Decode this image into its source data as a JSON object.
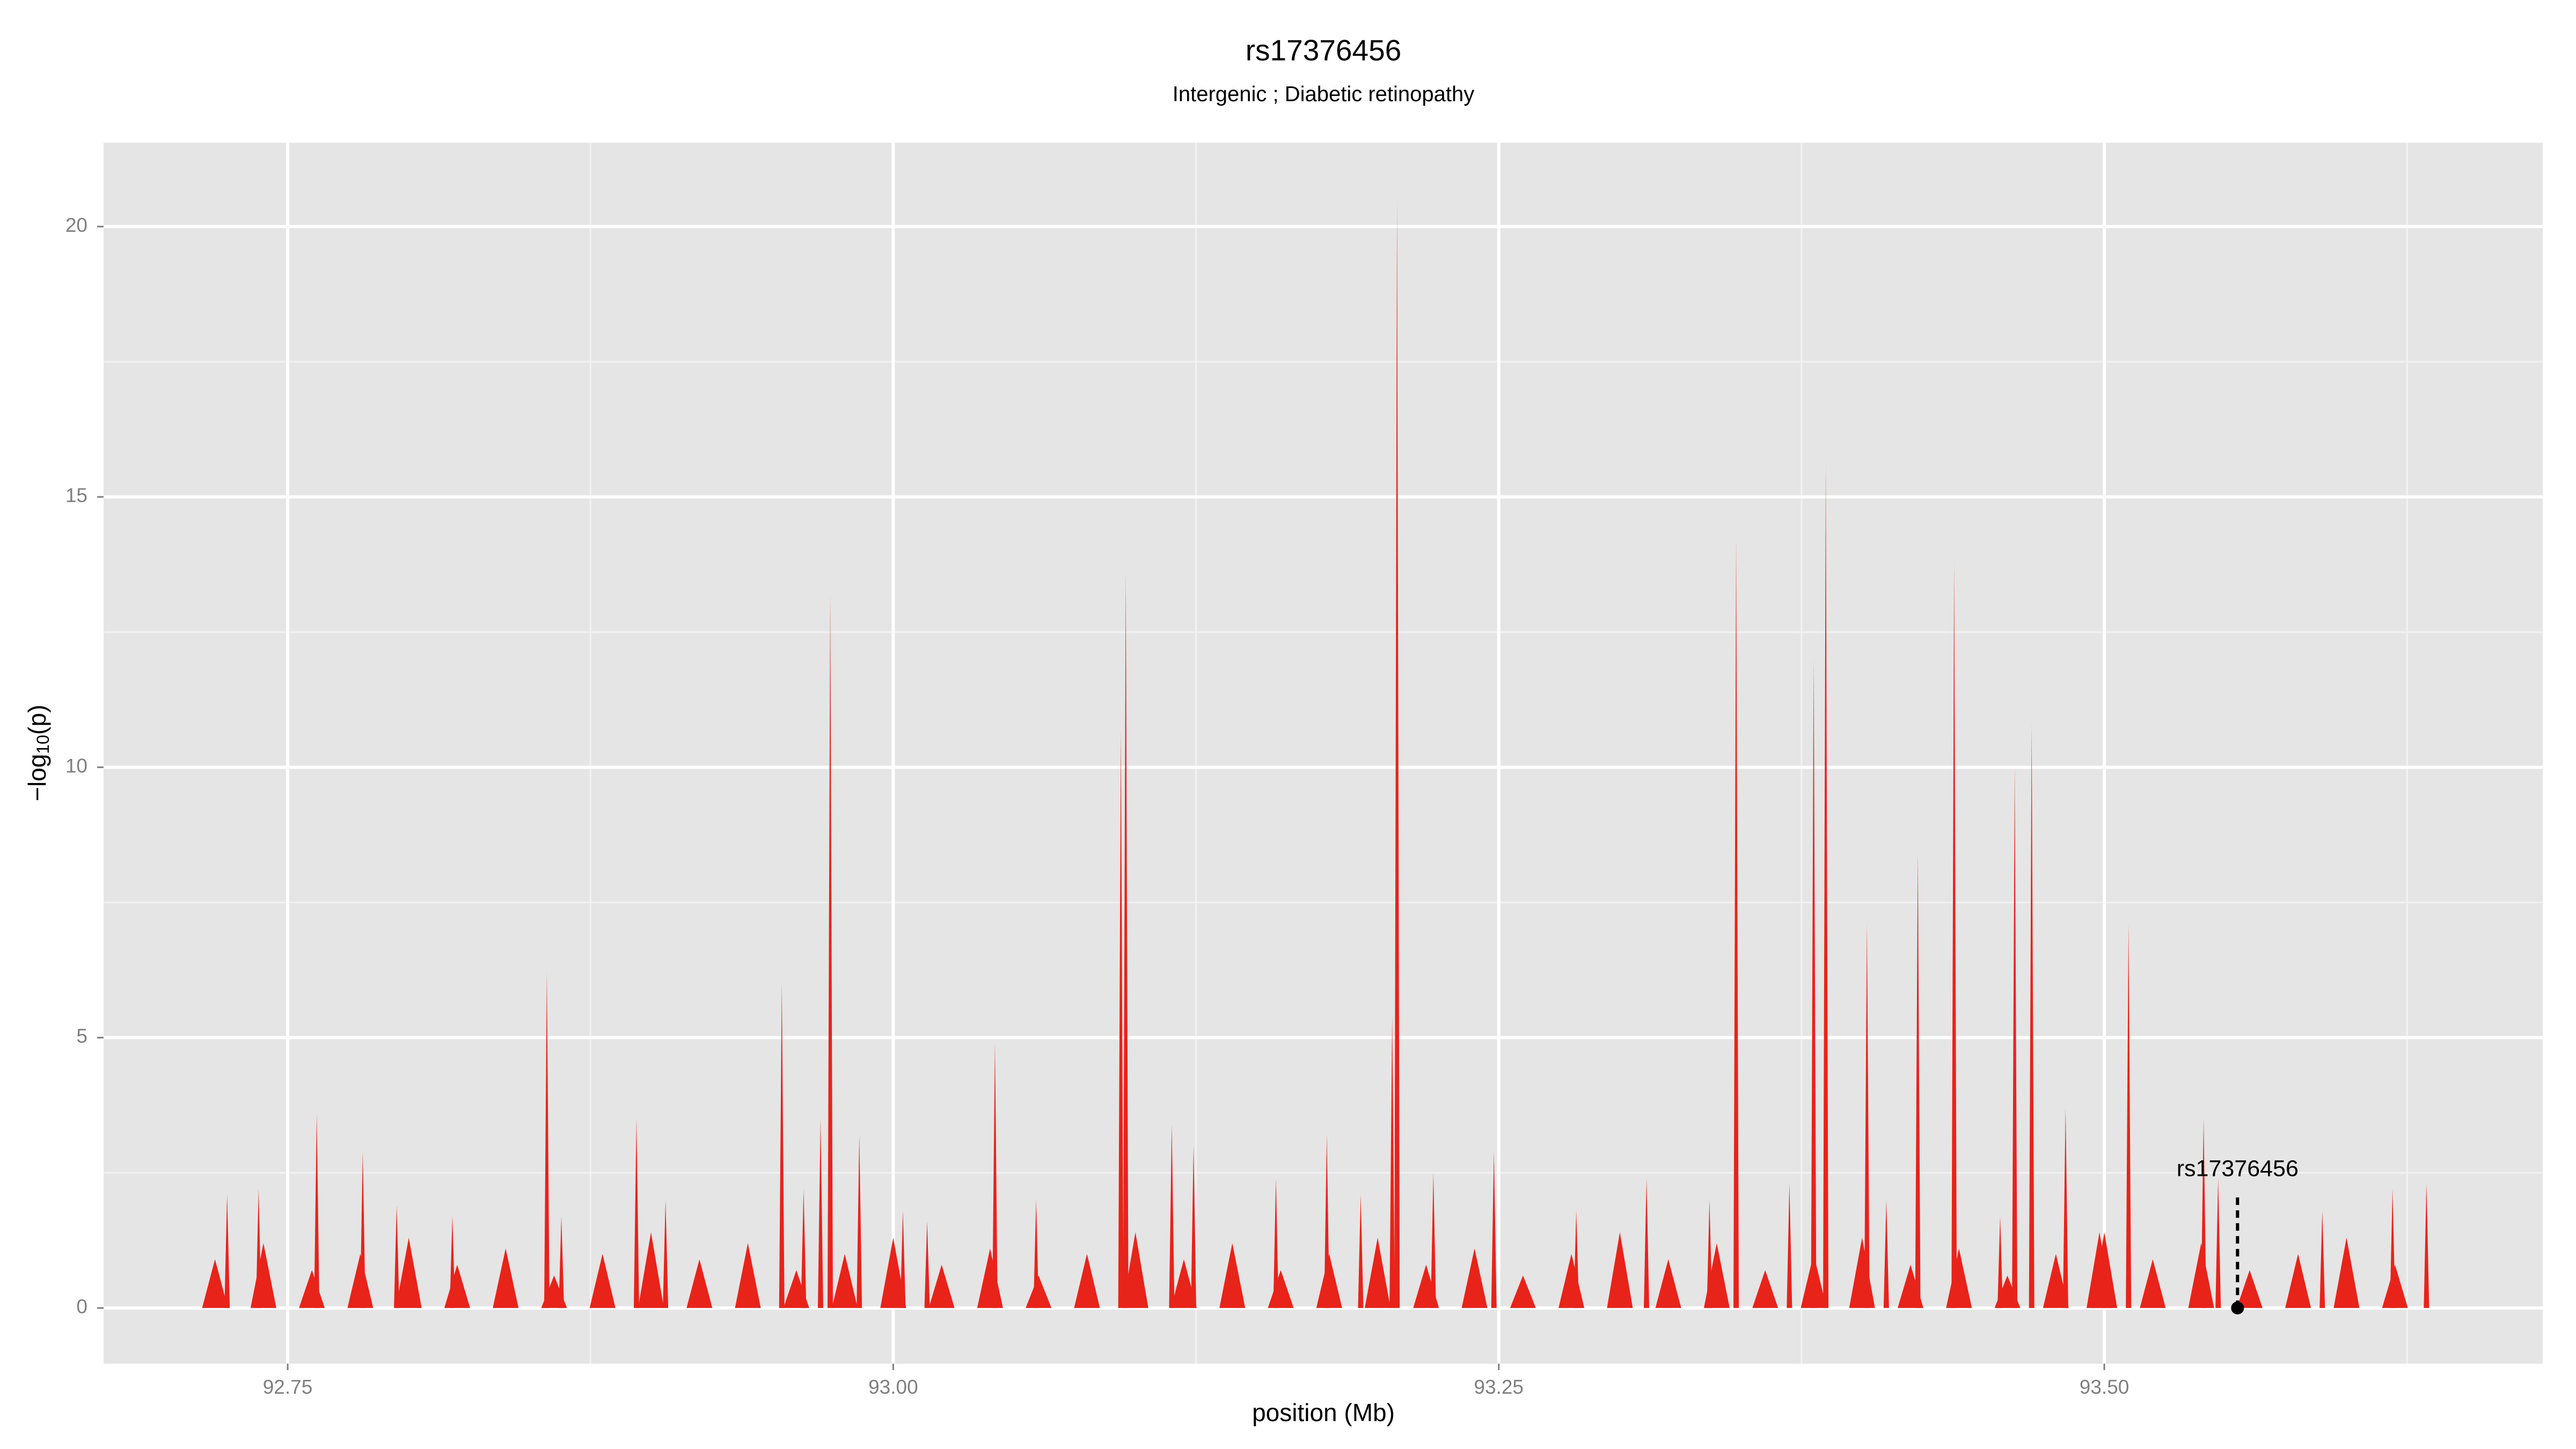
{
  "chart_data": {
    "type": "spike",
    "title": "rs17376456",
    "subtitle": "Intergenic ; Diabetic retinopathy",
    "x_label": "position (Mb)",
    "y_label": {
      "prefix": "−log",
      "sub": "10",
      "suffix": "(p)"
    },
    "color": "#e8231a",
    "x": [
      92.725,
      92.738,
      92.762,
      92.781,
      92.795,
      92.818,
      92.857,
      92.863,
      92.894,
      92.906,
      92.954,
      92.963,
      92.97,
      92.974,
      92.986,
      93.004,
      93.014,
      93.042,
      93.059,
      93.094,
      93.096,
      93.115,
      93.124,
      93.158,
      93.179,
      93.193,
      93.206,
      93.208,
      93.223,
      93.248,
      93.282,
      93.311,
      93.337,
      93.348,
      93.37,
      93.38,
      93.385,
      93.402,
      93.41,
      93.423,
      93.438,
      93.457,
      93.463,
      93.47,
      93.484,
      93.498,
      93.51,
      93.541,
      93.547,
      93.59,
      93.619,
      93.633,
      92.72,
      92.74,
      92.76,
      92.78,
      92.8,
      92.82,
      92.84,
      92.86,
      92.88,
      92.9,
      92.92,
      92.94,
      92.96,
      92.98,
      93.0,
      93.02,
      93.04,
      93.06,
      93.08,
      93.1,
      93.12,
      93.14,
      93.16,
      93.18,
      93.2,
      93.22,
      93.24,
      93.26,
      93.28,
      93.3,
      93.32,
      93.34,
      93.36,
      93.38,
      93.4,
      93.42,
      93.44,
      93.46,
      93.48,
      93.5,
      93.52,
      93.54,
      93.56,
      93.58,
      93.6,
      93.62
    ],
    "values": [
      2.1,
      2.2,
      3.6,
      2.9,
      1.9,
      1.7,
      6.2,
      1.7,
      3.5,
      2.0,
      6.0,
      2.2,
      3.5,
      13.2,
      3.2,
      1.8,
      1.6,
      4.9,
      2.0,
      10.7,
      13.6,
      3.4,
      3.0,
      2.4,
      3.2,
      2.1,
      5.4,
      20.5,
      2.5,
      2.9,
      1.8,
      2.4,
      2.0,
      14.2,
      2.3,
      12.0,
      15.6,
      7.1,
      2.0,
      8.4,
      13.8,
      1.7,
      10.0,
      10.8,
      3.7,
      1.4,
      7.1,
      3.5,
      2.4,
      1.8,
      2.2,
      2.3,
      0.9,
      1.2,
      0.7,
      1.0,
      1.3,
      0.8,
      1.1,
      0.6,
      1.0,
      1.4,
      0.9,
      1.2,
      0.7,
      1.0,
      1.3,
      0.8,
      1.1,
      0.6,
      1.0,
      1.4,
      0.9,
      1.2,
      0.7,
      1.0,
      1.3,
      0.8,
      1.1,
      0.6,
      1.0,
      1.4,
      0.9,
      1.2,
      0.7,
      1.0,
      1.3,
      0.8,
      1.1,
      0.6,
      1.0,
      1.4,
      0.9,
      1.2,
      0.7,
      1.0,
      1.3,
      0.8
    ],
    "annotation": {
      "text": "rs17376456",
      "x": 93.555,
      "y": 0
    },
    "xlim": [
      92.674,
      93.681
    ],
    "ylim": [
      -1.03,
      21.55
    ],
    "xticks": [
      92.75,
      {
        "value": 93,
        "label": "93.00"
      },
      93.25,
      {
        "value": 93.5,
        "label": "93.50"
      }
    ],
    "yticks": [
      0,
      5,
      10,
      15,
      20
    ],
    "x_minor_ticks": [
      92.875,
      93.125,
      93.375,
      93.625
    ],
    "y_minor_ticks": [
      2.5,
      7.5,
      12.5,
      17.5
    ],
    "grid": true
  }
}
